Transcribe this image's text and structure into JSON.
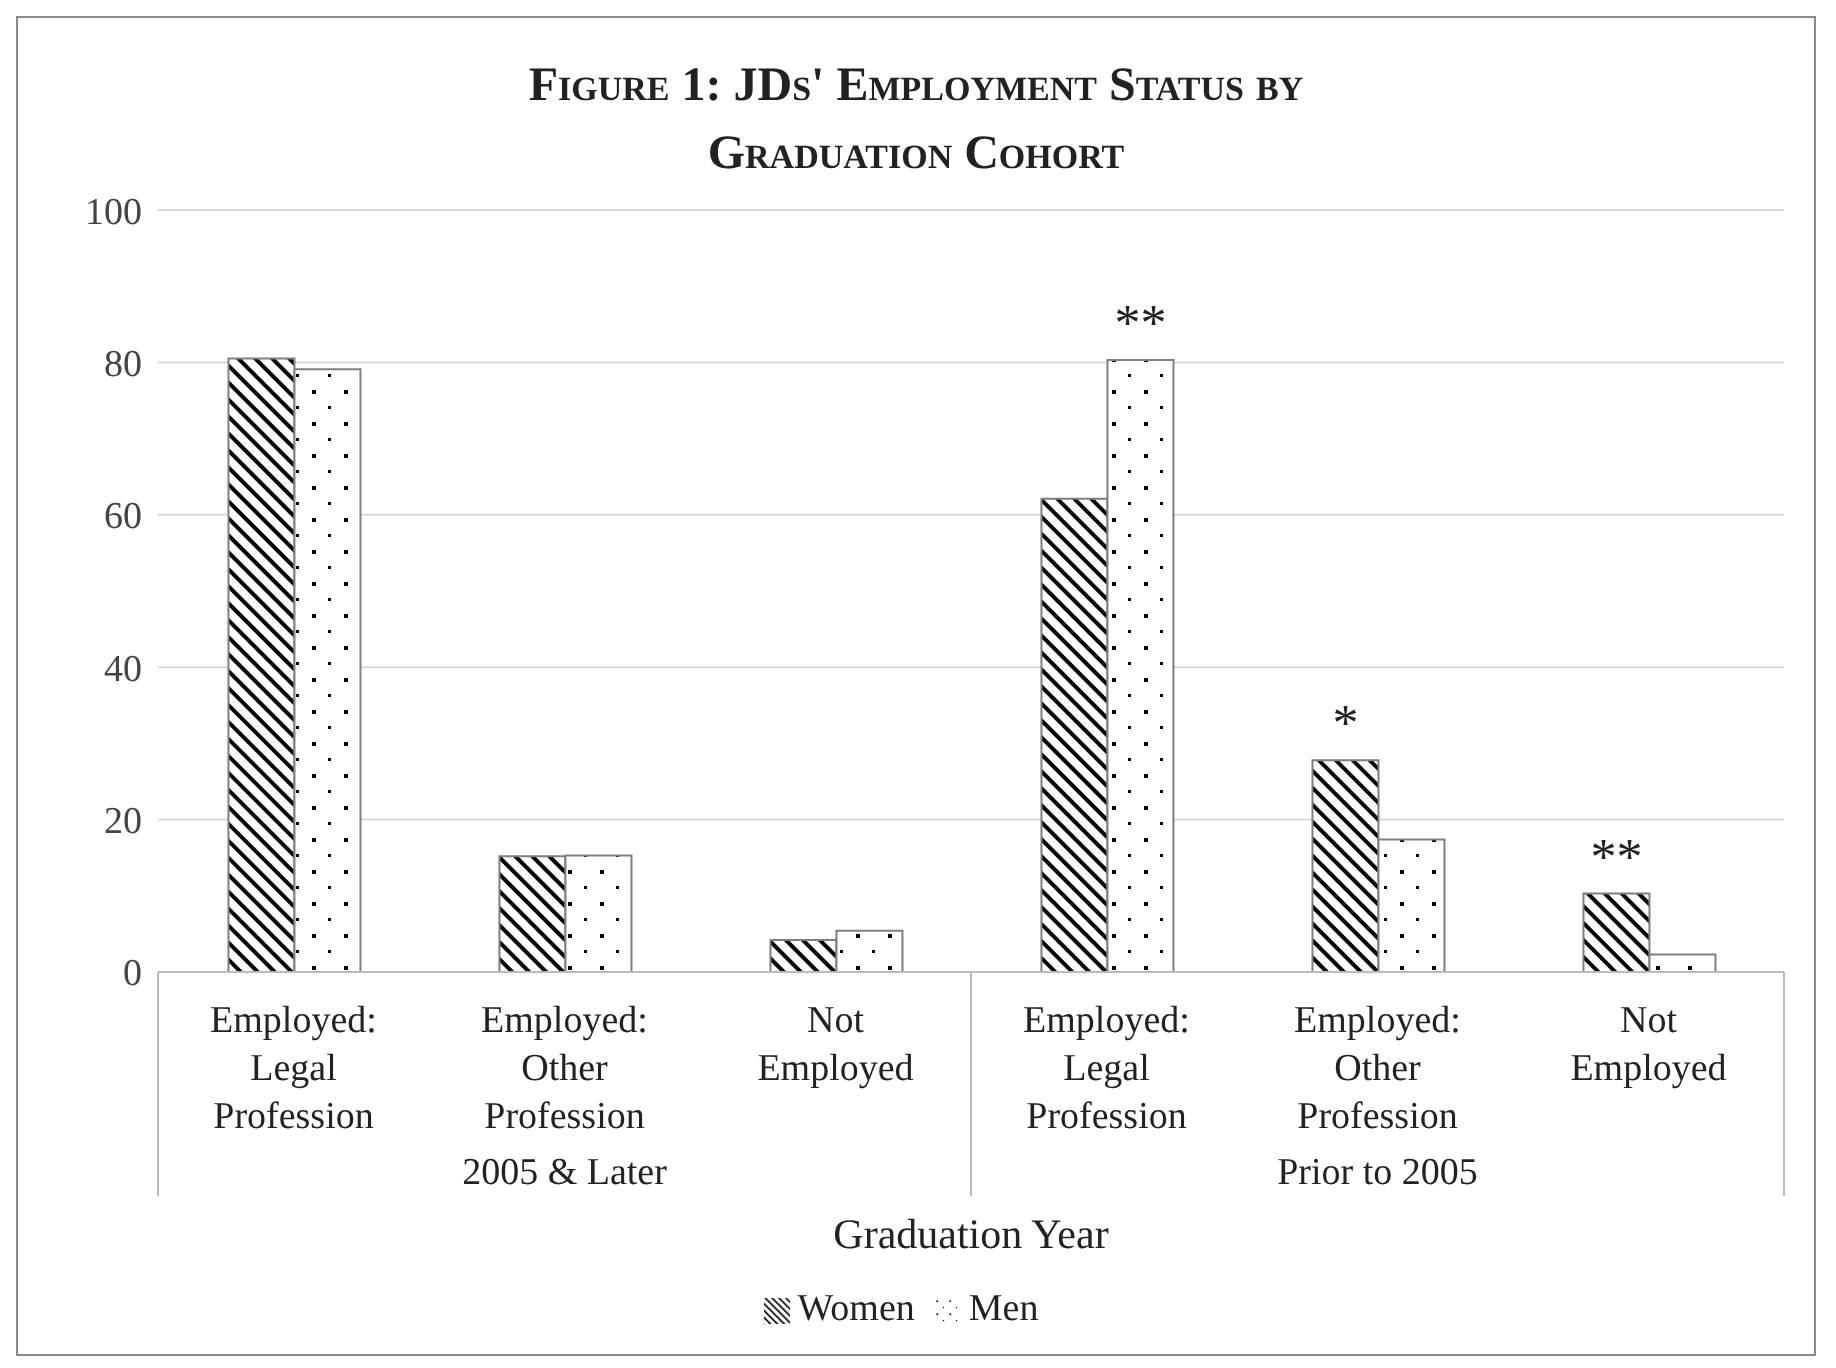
{
  "chart_data": {
    "type": "bar",
    "title": "Figure 1: JDs' Employment Status by Graduation Cohort",
    "xlabel": "Graduation Year",
    "categories": [
      "Employed: Legal Profession",
      "Employed: Other Profession",
      "Not Employed",
      "Employed: Legal Profession",
      "Employed: Other Profession",
      "Not Employed"
    ],
    "annotations": [
      "2005 & Later",
      "Prior to 2005"
    ],
    "series": [
      {
        "name": "Women",
        "color": "#7f7f7f",
        "values": [
          80.5,
          15.2,
          4.2,
          62.1,
          27.8,
          10.3
        ],
        "value_labels": [
          null,
          null,
          null,
          null,
          "*",
          "**"
        ]
      },
      {
        "name": "Men",
        "color": "#7f7f7f",
        "values": [
          79.1,
          15.3,
          5.4,
          80.3,
          17.4,
          2.3
        ],
        "value_labels": [
          null,
          null,
          null,
          "**",
          null,
          null
        ]
      }
    ],
    "ylim": [
      0,
      100
    ],
    "yticks": [
      0,
      20,
      40,
      60,
      80,
      100
    ],
    "grid": "y",
    "legend": "bottom"
  }
}
